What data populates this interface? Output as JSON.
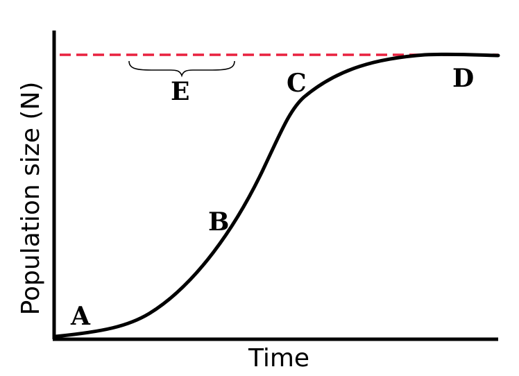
{
  "diagram": {
    "x_axis_label": "Time",
    "y_axis_label": "Population size (N)",
    "points": {
      "a": "A",
      "b": "B",
      "c": "C",
      "d": "D"
    },
    "bracket_label": "E",
    "colors": {
      "curve": "#000000",
      "axes": "#000000",
      "carrying_capacity_line": "#e8213f"
    },
    "carrying_capacity_line_style": "dashed",
    "curve_shape": "logistic (S-shaped)"
  }
}
